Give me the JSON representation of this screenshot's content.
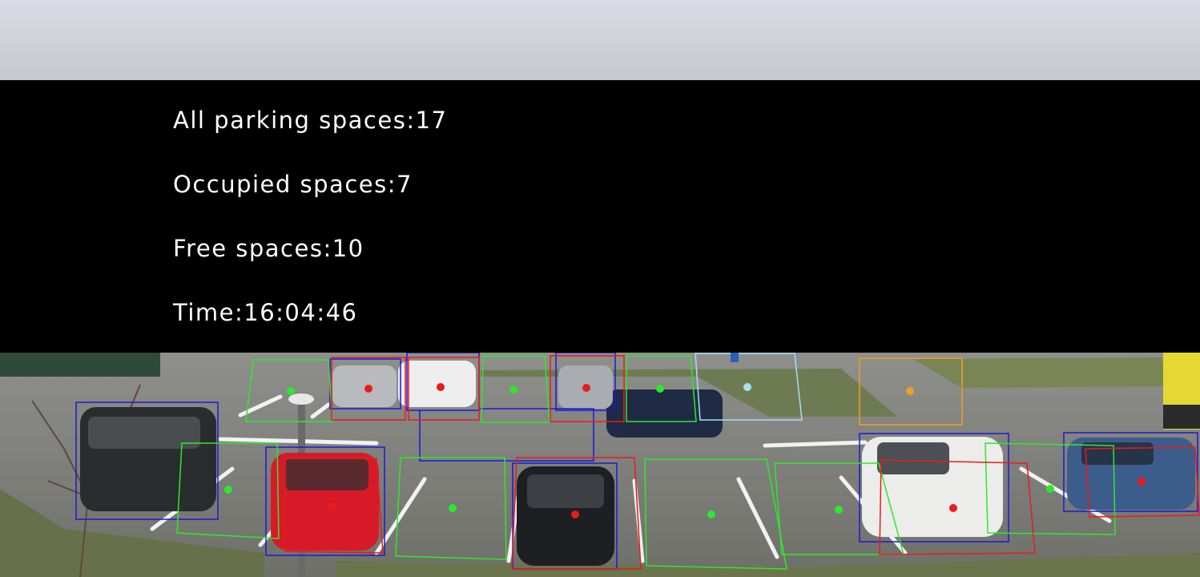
{
  "overlay": {
    "all_label": "All parking spaces:",
    "all_value": "17",
    "occupied_label": "Occupied spaces:",
    "occupied_value": "7",
    "free_label": "Free spaces:",
    "free_value": "10",
    "time_label": "Time:",
    "time_value": "16:04:46"
  },
  "colors": {
    "free_slot": "#2ee82e",
    "occupied_slot": "#e81c1c",
    "vehicle_box": "#1a1ad6",
    "disabled_slot": "#a8dff0",
    "reserved_slot": "#f0a020",
    "panel": "#000000",
    "text": "#ffffff"
  }
}
